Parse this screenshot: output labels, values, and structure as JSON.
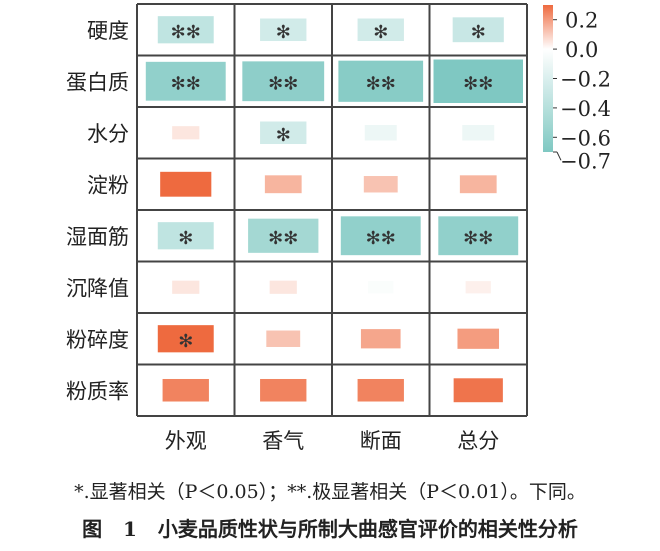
{
  "chart_data": {
    "type": "heatmap",
    "rows": [
      "硬度",
      "蛋白质",
      "水分",
      "淀粉",
      "湿面筋",
      "沉降值",
      "粉碎度",
      "粉质率"
    ],
    "columns": [
      "外观",
      "香气",
      "断面",
      "总分"
    ],
    "values": [
      [
        -0.35,
        -0.25,
        -0.25,
        -0.3
      ],
      [
        -0.6,
        -0.62,
        -0.65,
        -0.7
      ],
      [
        0.05,
        -0.25,
        -0.1,
        -0.1
      ],
      [
        0.3,
        0.15,
        0.12,
        0.15
      ],
      [
        -0.35,
        -0.5,
        -0.6,
        -0.6
      ],
      [
        0.05,
        0.05,
        -0.03,
        0.03
      ],
      [
        0.35,
        0.12,
        0.18,
        0.2
      ],
      [
        0.25,
        0.25,
        0.25,
        0.28
      ]
    ],
    "significance": [
      [
        "**",
        "*",
        "*",
        "*"
      ],
      [
        "**",
        "**",
        "**",
        "**"
      ],
      [
        "",
        "*",
        "",
        ""
      ],
      [
        "",
        "",
        "",
        ""
      ],
      [
        "*",
        "**",
        "**",
        "**"
      ],
      [
        "",
        "",
        "",
        ""
      ],
      [
        "*",
        "",
        "",
        ""
      ],
      [
        "",
        "",
        "",
        ""
      ]
    ],
    "colorbar": {
      "range": [
        -0.7,
        0.3
      ],
      "ticks": [
        0.2,
        0.0,
        -0.2,
        -0.4,
        -0.6,
        -0.7
      ],
      "tick_labels": [
        "0.2",
        "0.0",
        "−0.2",
        "−0.4",
        "−0.6",
        "−0.7"
      ],
      "positive_color": "#ee6a3f",
      "negative_color": "#7fc8c2"
    }
  },
  "caption": {
    "note": "*.显著相关（P＜0.05）；**.极显著相关（P＜0.01）。下同。",
    "title": "图 1   小麦品质性状与所制大曲感官评价的相关性分析"
  }
}
